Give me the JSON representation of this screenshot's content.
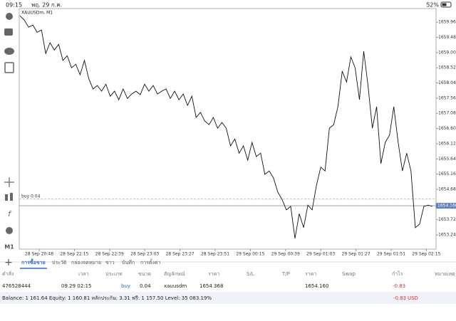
{
  "status_bar": {
    "time": "09:15",
    "date": "พฤ. 29 ก.ค.",
    "battery": "52%"
  },
  "chart_data": {
    "type": "line",
    "title": "XAUUSDm, M1",
    "color": "#111111",
    "values": [
      1660.16,
      1660.03,
      1659.8,
      1659.87,
      1659.64,
      1659.71,
      1658.97,
      1659.31,
      1659.08,
      1659.26,
      1658.75,
      1658.9,
      1658.52,
      1658.63,
      1658.3,
      1658.75,
      1658.18,
      1657.85,
      1657.96,
      1657.78,
      1658.0,
      1657.62,
      1657.78,
      1657.51,
      1657.85,
      1657.55,
      1657.69,
      1657.78,
      1657.67,
      1658.0,
      1657.78,
      1657.96,
      1657.69,
      1657.78,
      1657.85,
      1657.55,
      1657.78,
      1657.51,
      1657.69,
      1657.33,
      1657.62,
      1656.95,
      1657.11,
      1656.84,
      1656.72,
      1656.95,
      1656.61,
      1656.79,
      1656.61,
      1656.05,
      1656.27,
      1655.82,
      1656.05,
      1655.6,
      1656.16,
      1655.71,
      1655.82,
      1655.15,
      1655.26,
      1655.04,
      1654.59,
      1654.36,
      1654.03,
      1654.14,
      1653.13,
      1653.91,
      1653.47,
      1654.18,
      1654.03,
      1654.81,
      1655.38,
      1655.26,
      1656.61,
      1656.72,
      1657.29,
      1658.41,
      1658.07,
      1658.86,
      1658.52,
      1657.51,
      1659.04,
      1657.96,
      1656.61,
      1657.29,
      1655.49,
      1656.16,
      1656.39,
      1657.29,
      1656.16,
      1655.26,
      1655.82,
      1655.26,
      1653.47,
      1653.58,
      1654.14,
      1654.18,
      1654.14
    ],
    "xtick_labels": [
      "28 Sep 20:48",
      "28 Sep 22:15",
      "28 Sep 22:39",
      "28 Sep 23:03",
      "28 Sep 23:27",
      "28 Sep 23:51",
      "29 Sep 00:15",
      "29 Sep 00:39",
      "29 Sep 01:03",
      "29 Sep 01:27",
      "29 Sep 01:51",
      "29 Sep 02:15"
    ],
    "ylim": [
      1652.79,
      1660.39
    ],
    "yticks": [
      {
        "value": 1653.24,
        "label": "1653.240"
      },
      {
        "value": 1653.72,
        "label": "1653.720"
      },
      {
        "value": 1654.68,
        "label": "1654.680"
      },
      {
        "value": 1655.16,
        "label": "1655.160"
      },
      {
        "value": 1655.64,
        "label": "1655.640"
      },
      {
        "value": 1656.12,
        "label": "1656.120"
      },
      {
        "value": 1656.6,
        "label": "1656.600"
      },
      {
        "value": 1657.08,
        "label": "1657.080"
      },
      {
        "value": 1657.56,
        "label": "1657.560"
      },
      {
        "value": 1658.04,
        "label": "1658.040"
      },
      {
        "value": 1658.52,
        "label": "1658.520"
      },
      {
        "value": 1659,
        "label": "1659.000"
      },
      {
        "value": 1659.48,
        "label": "1659.480"
      },
      {
        "value": 1659.96,
        "label": "1659.960"
      }
    ],
    "order_line": {
      "value": 1654.368,
      "label": "buy 0.04"
    },
    "current_price": {
      "value": 1654.16,
      "label": "1654.160"
    }
  },
  "left_toolbar": {
    "timeframe": "M1"
  },
  "tabs": [
    "การซื้อขาย",
    "ประวัติ",
    "กล่องจดหมาย",
    "ข่าว",
    "บันทึก",
    "การตั้งค่า"
  ],
  "table": {
    "headers": [
      "คำสั่ง",
      "เวลา",
      "ประเภท",
      "ขนาด",
      "สัญลักษณ์",
      "ราคา",
      "S/L",
      "T/P",
      "ราคา",
      "Swap",
      "กำไร",
      "หมายเหตุ"
    ],
    "row": {
      "order": "476528444",
      "time": "09.29 02:15",
      "type": "buy",
      "size": "0.04",
      "symbol": "xauusdm",
      "open_price": "1654.368",
      "price": "1654.160",
      "profit": "-0.83"
    }
  },
  "balance": {
    "text": "Balance: 1 161.64 Equity: 1 160.81 หลักประกัน: 3.31 ฟรี: 1 157.50 Level: 35 083.19%",
    "profit": "-0.83",
    "currency": "USD"
  }
}
